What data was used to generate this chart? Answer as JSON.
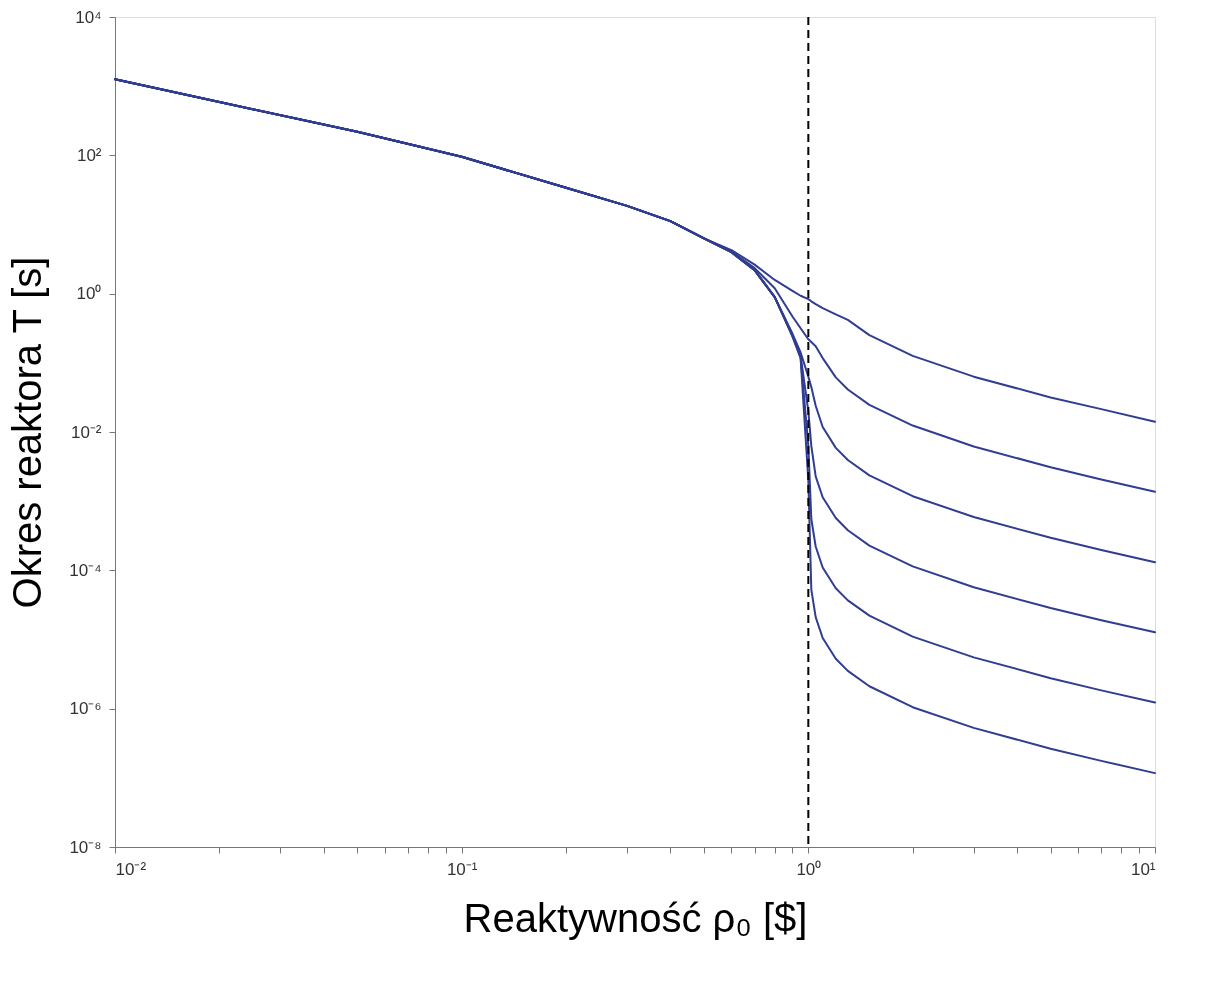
{
  "chart_data": {
    "type": "line",
    "xlabel": "Reaktywność ρ₀  [$]",
    "ylabel": "Okres reaktora T [s]",
    "log": "xy",
    "grid": false,
    "legend": false,
    "marker": "none",
    "line_style": "solid",
    "x": [
      0.01,
      0.02,
      0.05,
      0.1,
      0.2,
      0.3,
      0.4,
      0.5,
      0.6,
      0.7,
      0.8,
      0.9,
      0.95,
      1.0,
      1.02,
      1.05,
      1.1,
      1.2,
      1.3,
      1.5,
      2,
      3,
      5,
      7,
      10
    ],
    "xlim": [
      0.01,
      10
    ],
    "xticks": [
      {
        "value": 0.01,
        "label": "10⁻²"
      },
      {
        "value": 0.02,
        "label": null
      },
      {
        "value": 0.03,
        "label": null
      },
      {
        "value": 0.04,
        "label": null
      },
      {
        "value": 0.05,
        "label": null
      },
      {
        "value": 0.06,
        "label": null
      },
      {
        "value": 0.07,
        "label": null
      },
      {
        "value": 0.08,
        "label": null
      },
      {
        "value": 0.09,
        "label": null
      },
      {
        "value": 0.1,
        "label": "10⁻¹"
      },
      {
        "value": 0.2,
        "label": null
      },
      {
        "value": 0.3,
        "label": null
      },
      {
        "value": 0.4,
        "label": null
      },
      {
        "value": 0.5,
        "label": null
      },
      {
        "value": 0.6,
        "label": null
      },
      {
        "value": 0.7,
        "label": null
      },
      {
        "value": 0.8,
        "label": null
      },
      {
        "value": 0.9,
        "label": null
      },
      {
        "value": 1,
        "label": "10⁰"
      },
      {
        "value": 2,
        "label": null
      },
      {
        "value": 3,
        "label": null
      },
      {
        "value": 4,
        "label": null
      },
      {
        "value": 5,
        "label": null
      },
      {
        "value": 6,
        "label": null
      },
      {
        "value": 7,
        "label": null
      },
      {
        "value": 8,
        "label": null
      },
      {
        "value": 9,
        "label": null
      },
      {
        "value": 10,
        "label": "10¹"
      }
    ],
    "ylim": [
      1e-08,
      10000
    ],
    "yticks": [
      {
        "value": 1e-08,
        "label": "10⁻⁸"
      },
      {
        "value": 1e-06,
        "label": "10⁻⁶"
      },
      {
        "value": 0.0001,
        "label": "10⁻⁴"
      },
      {
        "value": 0.01,
        "label": "10⁻²"
      },
      {
        "value": 1,
        "label": "10⁰"
      },
      {
        "value": 100,
        "label": "10²"
      },
      {
        "value": 10000,
        "label": "10⁴"
      }
    ],
    "ref_lines": [
      {
        "axis": "x",
        "value": 1,
        "color": "#000000",
        "line_style": "dashed"
      }
    ],
    "series": [
      {
        "color": "#303d91",
        "values": [
          1260,
          589,
          219,
          95.5,
          33.9,
          18.6,
          11.2,
          6.31,
          4.27,
          2.63,
          1.58,
          1.1,
          0.933,
          0.832,
          0.776,
          0.708,
          0.617,
          0.501,
          0.417,
          0.251,
          0.126,
          0.0631,
          0.0316,
          0.0214,
          0.0141
        ]
      },
      {
        "color": "#303d91",
        "values": [
          1260,
          589,
          219,
          95.5,
          33.9,
          18.6,
          11.2,
          6.31,
          4.07,
          2.34,
          1.2,
          0.468,
          0.316,
          0.219,
          0.2,
          0.174,
          0.117,
          0.0617,
          0.0412,
          0.0247,
          0.0124,
          0.00618,
          0.00309,
          0.00206,
          0.00137
        ]
      },
      {
        "color": "#303d91",
        "values": [
          1260,
          589,
          219,
          95.5,
          33.9,
          18.6,
          11.2,
          6.31,
          3.98,
          2.19,
          0.891,
          0.263,
          0.141,
          0.0631,
          0.0447,
          0.024,
          0.0118,
          0.0059,
          0.00394,
          0.00236,
          0.00118,
          0.00059,
          0.000295,
          0.000197,
          0.000131
        ]
      },
      {
        "color": "#303d91",
        "values": [
          1260,
          589,
          219,
          95.5,
          33.9,
          18.6,
          11.2,
          6.31,
          3.98,
          2.19,
          0.891,
          0.251,
          0.126,
          0.02,
          0.00631,
          0.00228,
          0.00114,
          0.00057,
          0.00038,
          0.000228,
          0.000114,
          5.7e-05,
          2.85e-05,
          1.9e-05,
          1.27e-05
        ]
      },
      {
        "color": "#303d91",
        "values": [
          1260,
          589,
          219,
          95.5,
          33.9,
          18.6,
          11.2,
          6.31,
          3.98,
          2.19,
          0.891,
          0.245,
          0.12,
          0.00631,
          0.000552,
          0.000221,
          0.00011,
          5.52e-05,
          3.68e-05,
          2.21e-05,
          1.1e-05,
          5.52e-06,
          2.76e-06,
          1.84e-06,
          1.23e-06
        ]
      },
      {
        "color": "#303d91",
        "values": [
          1260,
          589,
          219,
          95.5,
          33.9,
          18.6,
          11.2,
          6.31,
          3.98,
          2.19,
          0.891,
          0.24,
          0.117,
          0.002,
          5.27e-05,
          2.11e-05,
          1.05e-05,
          5.27e-06,
          3.52e-06,
          2.11e-06,
          1.05e-06,
          5.27e-07,
          2.64e-07,
          1.76e-07,
          1.17e-07
        ]
      }
    ]
  }
}
